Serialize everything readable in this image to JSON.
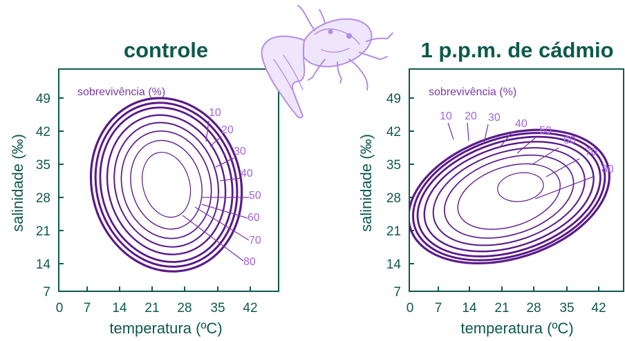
{
  "chart_data": [
    {
      "type": "contour",
      "title": "controle",
      "xlabel": "temperatura (ºC)",
      "ylabel": "salinidade (‰)",
      "xticks": [
        "0",
        "7",
        "14",
        "21",
        "28",
        "35",
        "42"
      ],
      "yticks": [
        "7",
        "14",
        "21",
        "28",
        "35",
        "42",
        "49"
      ],
      "xlim": [
        0,
        45
      ],
      "ylim": [
        7,
        52
      ],
      "legend_title": "sobrevivência (%)",
      "levels": [
        "10",
        "20",
        "30",
        "40",
        "50",
        "60",
        "70",
        "80"
      ],
      "contours": [
        {
          "level": 10,
          "cx": 23,
          "cy": 29.5,
          "rx": 16,
          "ry": 18.5,
          "angle": -16
        },
        {
          "level": 20,
          "cx": 23,
          "cy": 29.5,
          "rx": 15,
          "ry": 17.5,
          "angle": -16
        },
        {
          "level": 30,
          "cx": 23,
          "cy": 29.5,
          "rx": 14,
          "ry": 16.5,
          "angle": -16
        },
        {
          "level": 40,
          "cx": 23,
          "cy": 29.5,
          "rx": 12.5,
          "ry": 14.9,
          "angle": -16
        },
        {
          "level": 50,
          "cx": 23,
          "cy": 29.5,
          "rx": 11,
          "ry": 13.3,
          "angle": -16
        },
        {
          "level": 60,
          "cx": 23,
          "cy": 29.5,
          "rx": 9.5,
          "ry": 11.5,
          "angle": -16
        },
        {
          "level": 70,
          "cx": 23,
          "cy": 29.5,
          "rx": 7.5,
          "ry": 9.5,
          "angle": -16
        },
        {
          "level": 80,
          "cx": 23,
          "cy": 29.5,
          "rx": 5,
          "ry": 7,
          "angle": -16
        }
      ]
    },
    {
      "type": "contour",
      "title": "1 p.p.m. de cádmio",
      "xlabel": "temperatura (ºC)",
      "ylabel": "salinidade (‰)",
      "xticks": [
        "0",
        "7",
        "14",
        "21",
        "28",
        "35",
        "42"
      ],
      "yticks": [
        "7",
        "14",
        "21",
        "28",
        "35",
        "42",
        "49"
      ],
      "xlim": [
        0,
        45
      ],
      "ylim": [
        7,
        52
      ],
      "legend_title": "sobrevivência (%)",
      "levels": [
        "10",
        "20",
        "30",
        "40",
        "50",
        "60",
        "70",
        "80"
      ],
      "contours": [
        {
          "level": 10,
          "cx": 21.5,
          "cy": 27,
          "rx": 22.5,
          "ry": 13,
          "angle": -18
        },
        {
          "level": 20,
          "cx": 21.5,
          "cy": 27,
          "rx": 21.5,
          "ry": 12.4,
          "angle": -18
        },
        {
          "level": 30,
          "cx": 21.5,
          "cy": 27,
          "rx": 20.5,
          "ry": 11.6,
          "angle": -18
        },
        {
          "level": 40,
          "cx": 21.5,
          "cy": 27,
          "rx": 19,
          "ry": 10.6,
          "angle": -18
        },
        {
          "level": 50,
          "cx": 21.5,
          "cy": 27,
          "rx": 17,
          "ry": 9.4,
          "angle": -18
        },
        {
          "level": 60,
          "cx": 21.5,
          "cy": 27,
          "rx": 14.5,
          "ry": 8,
          "angle": -18
        },
        {
          "level": 70,
          "cx": 21.5,
          "cy": 27,
          "rx": 11.5,
          "ry": 6.3,
          "angle": -18
        },
        {
          "level": 80,
          "cx": 24,
          "cy": 29,
          "rx": 5,
          "ry": 3,
          "angle": -8
        }
      ]
    }
  ],
  "colors": {
    "text_green": "#0d5a4a",
    "contour_purple": "#5a1a8a",
    "label_purple": "#a066dd",
    "crab": "#b48ce6"
  },
  "decoration": {
    "icon": "crab-illustration"
  }
}
